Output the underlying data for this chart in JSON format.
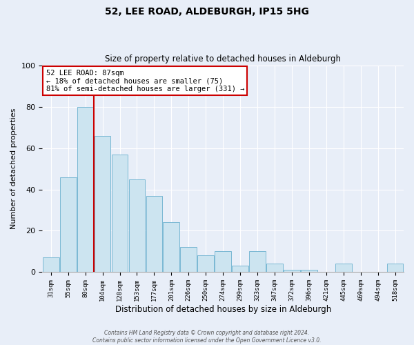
{
  "title": "52, LEE ROAD, ALDEBURGH, IP15 5HG",
  "subtitle": "Size of property relative to detached houses in Aldeburgh",
  "xlabel": "Distribution of detached houses by size in Aldeburgh",
  "ylabel": "Number of detached properties",
  "bin_labels": [
    "31sqm",
    "55sqm",
    "80sqm",
    "104sqm",
    "128sqm",
    "153sqm",
    "177sqm",
    "201sqm",
    "226sqm",
    "250sqm",
    "274sqm",
    "299sqm",
    "323sqm",
    "347sqm",
    "372sqm",
    "396sqm",
    "421sqm",
    "445sqm",
    "469sqm",
    "494sqm",
    "518sqm"
  ],
  "bar_heights": [
    7,
    46,
    80,
    66,
    57,
    45,
    37,
    24,
    12,
    8,
    10,
    3,
    10,
    4,
    1,
    1,
    0,
    4,
    0,
    0,
    4
  ],
  "bar_color": "#cce4f0",
  "bar_edge_color": "#7ab8d4",
  "vline_x_index": 2,
  "vline_color": "#cc0000",
  "ylim": [
    0,
    100
  ],
  "annotation_title": "52 LEE ROAD: 87sqm",
  "annotation_line1": "← 18% of detached houses are smaller (75)",
  "annotation_line2": "81% of semi-detached houses are larger (331) →",
  "annotation_box_color": "#ffffff",
  "annotation_box_edge": "#cc0000",
  "footer1": "Contains HM Land Registry data © Crown copyright and database right 2024.",
  "footer2": "Contains public sector information licensed under the Open Government Licence v3.0.",
  "background_color": "#e8eef8"
}
